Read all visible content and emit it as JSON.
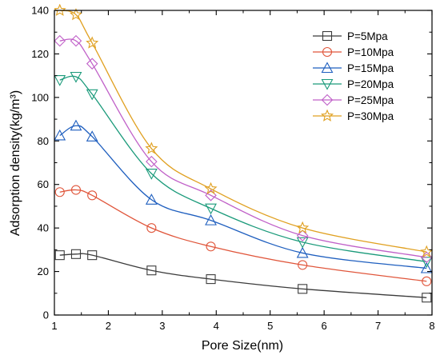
{
  "chart_data": {
    "type": "line",
    "xlabel": "Pore Size(nm)",
    "ylabel": "Adsorption density(kg/m³)",
    "xlim": [
      1,
      8
    ],
    "ylim": [
      0,
      140
    ],
    "xticks": [
      1,
      2,
      3,
      4,
      5,
      6,
      7,
      8
    ],
    "yticks": [
      0,
      20,
      40,
      60,
      80,
      100,
      120,
      140
    ],
    "grid": false,
    "legend_position": "top-right",
    "x": [
      1.1,
      1.4,
      1.7,
      2.8,
      3.9,
      5.6,
      7.9
    ],
    "series": [
      {
        "name": "P=5Mpa",
        "marker": "square",
        "color": "#3b3b3b",
        "values": [
          27.5,
          28,
          27.5,
          20.5,
          16.5,
          12,
          8
        ]
      },
      {
        "name": "P=10Mpa",
        "marker": "circle",
        "color": "#e0553a",
        "values": [
          56.5,
          57.5,
          55,
          40,
          31.5,
          23,
          15.5
        ]
      },
      {
        "name": "P=15Mpa",
        "marker": "triangle-up",
        "color": "#1f5fbf",
        "values": [
          82.5,
          87,
          82,
          53,
          43.5,
          28.5,
          21.5
        ]
      },
      {
        "name": "P=20Mpa",
        "marker": "triangle-down",
        "color": "#1a9a7a",
        "values": [
          108,
          109.5,
          101.5,
          65,
          49,
          33.5,
          24.5
        ]
      },
      {
        "name": "P=25Mpa",
        "marker": "diamond",
        "color": "#c060c8",
        "values": [
          126,
          126,
          115.5,
          70.5,
          55,
          36.5,
          26.5
        ]
      },
      {
        "name": "P=30Mpa",
        "marker": "star",
        "color": "#e0a020",
        "values": [
          140,
          138,
          125,
          76.5,
          58,
          40,
          29
        ]
      }
    ]
  }
}
